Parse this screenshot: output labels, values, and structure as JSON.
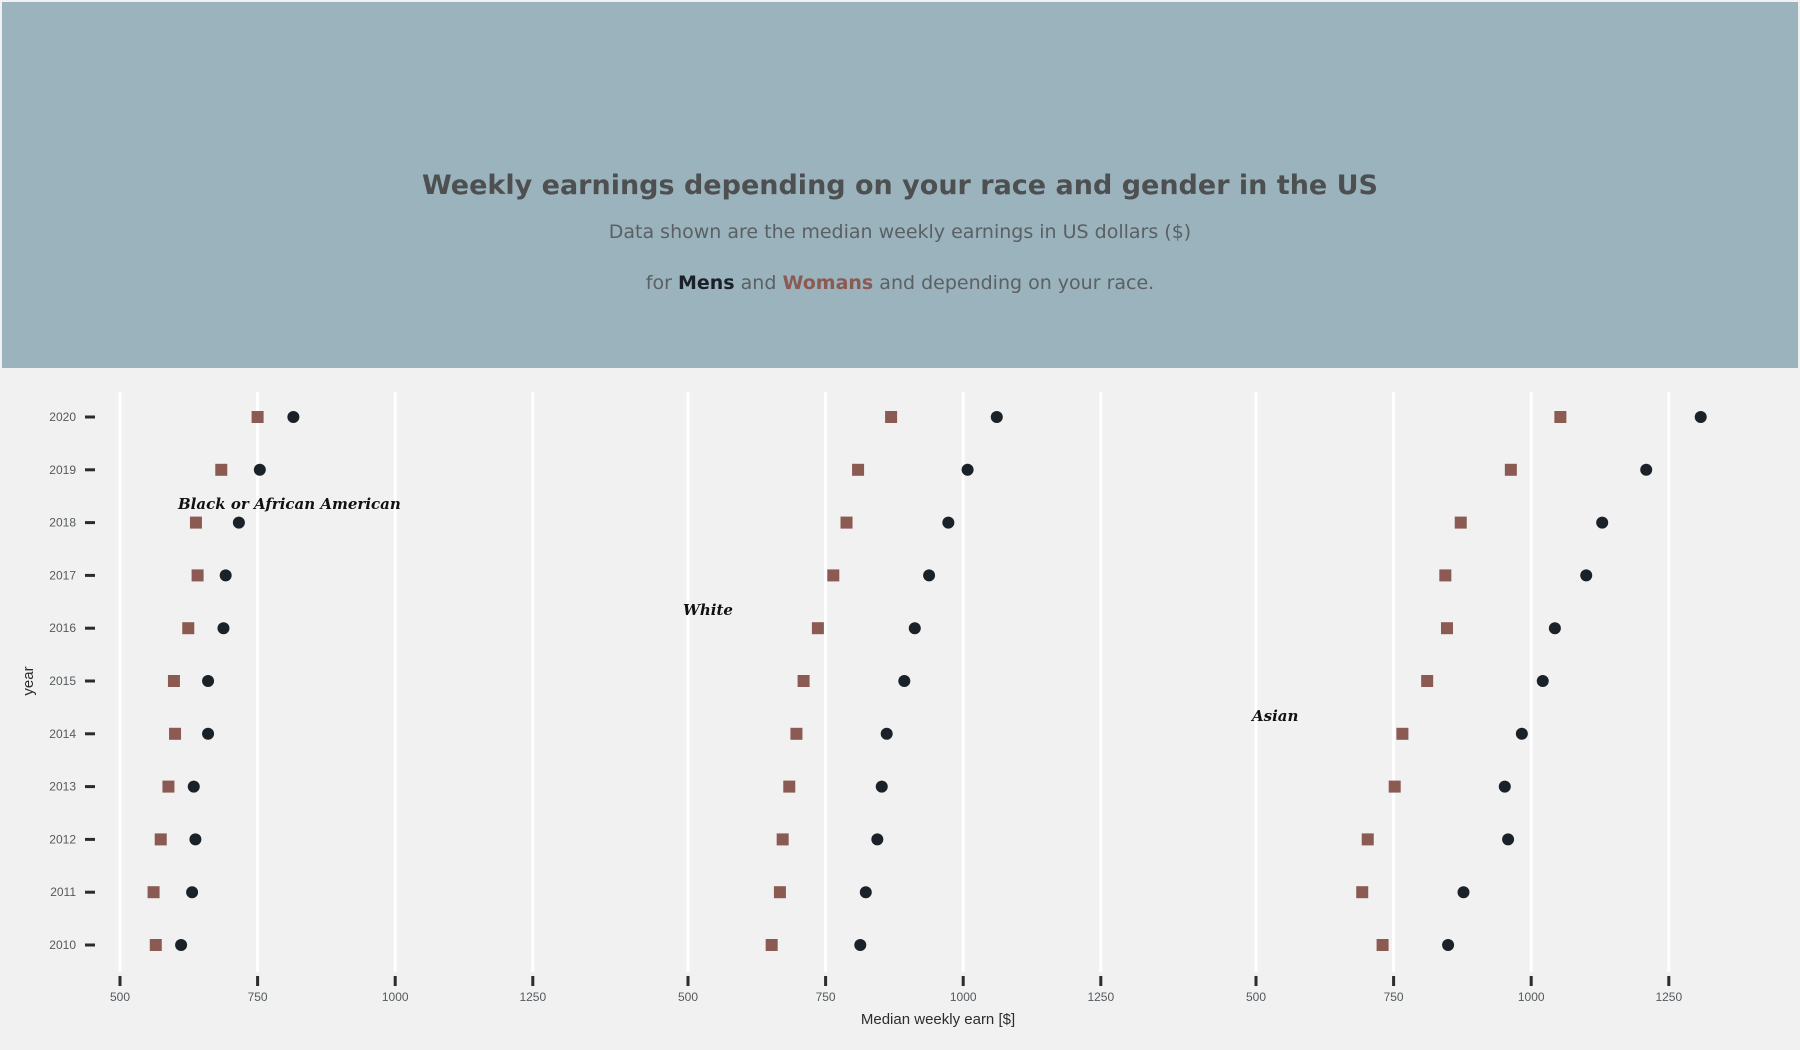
{
  "header": {
    "title": "Weekly earnings depending on your race and gender in the US",
    "subtitle": "Data shown are the median weekly earnings in US dollars ($)",
    "legend_prefix": "for",
    "men_label": "Mens",
    "legend_and": "and",
    "women_label": "Womans",
    "legend_suffix": "and depending on your race."
  },
  "colors": {
    "header_bg": "#9ab3bc",
    "panel_bg": "#f0f1f0",
    "men": "#1a2129",
    "women": "#8b5a53",
    "grid": "#ffffff"
  },
  "chart_data": {
    "type": "scatter",
    "xlabel": "Median weekly earn [$]",
    "ylabel": "year",
    "years": [
      2020,
      2019,
      2018,
      2017,
      2016,
      2015,
      2014,
      2013,
      2012,
      2011,
      2010
    ],
    "xticks": [
      500,
      750,
      1000,
      1250
    ],
    "xlim": [
      500,
      1250
    ],
    "facets": [
      {
        "label": "Black or African American",
        "men": [
          815,
          754,
          716,
          692,
          688,
          660,
          660,
          634,
          637,
          631,
          611
        ],
        "women": [
          750,
          684,
          638,
          641,
          624,
          598,
          600,
          588,
          574,
          561,
          565
        ]
      },
      {
        "label": "White",
        "men": [
          1061,
          1008,
          973,
          938,
          912,
          893,
          861,
          852,
          844,
          823,
          813
        ],
        "women": [
          869,
          809,
          788,
          764,
          736,
          710,
          697,
          684,
          672,
          667,
          652
        ]
      },
      {
        "label": "Asian",
        "men": [
          1308,
          1209,
          1129,
          1100,
          1043,
          1021,
          983,
          952,
          958,
          877,
          849
        ],
        "women": [
          1053,
          963,
          872,
          844,
          847,
          811,
          766,
          752,
          703,
          693,
          730
        ]
      }
    ]
  }
}
